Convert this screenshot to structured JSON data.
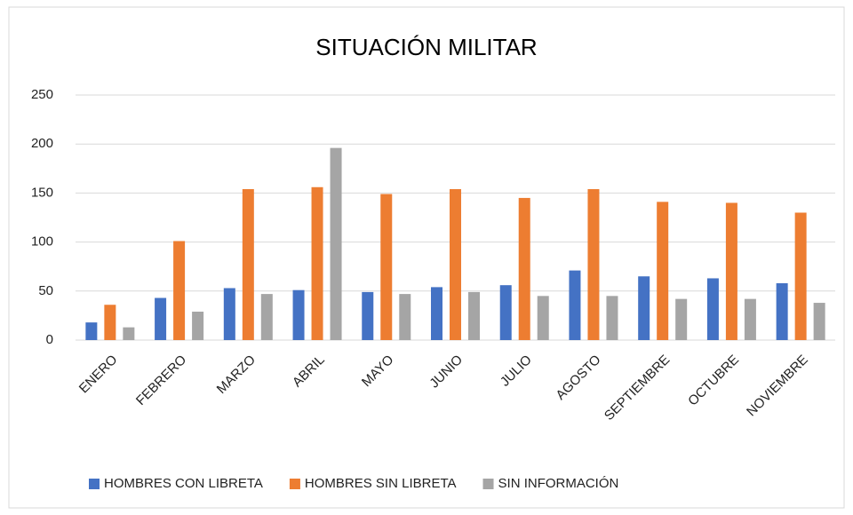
{
  "chart_data": {
    "type": "bar",
    "title": "SITUACIÓN MILITAR",
    "categories": [
      "ENERO",
      "FEBRERO",
      "MARZO",
      "ABRIL",
      "MAYO",
      "JUNIO",
      "JULIO",
      "AGOSTO",
      "SEPTIEMBRE",
      "OCTUBRE",
      "NOVIEMBRE"
    ],
    "series": [
      {
        "name": "HOMBRES CON LIBRETA",
        "color": "#4472c4",
        "values": [
          18,
          43,
          53,
          51,
          49,
          54,
          56,
          71,
          65,
          63,
          58
        ]
      },
      {
        "name": "HOMBRES SIN LIBRETA",
        "color": "#ed7d31",
        "values": [
          36,
          101,
          154,
          156,
          149,
          154,
          145,
          154,
          141,
          140,
          130
        ]
      },
      {
        "name": "SIN INFORMACIÓN",
        "color": "#a5a5a5",
        "values": [
          13,
          29,
          47,
          196,
          47,
          49,
          45,
          45,
          42,
          42,
          38
        ]
      }
    ],
    "ylim": [
      0,
      250
    ],
    "yticks": [
      0,
      50,
      100,
      150,
      200,
      250
    ],
    "grid": true,
    "legend": "bottom"
  }
}
